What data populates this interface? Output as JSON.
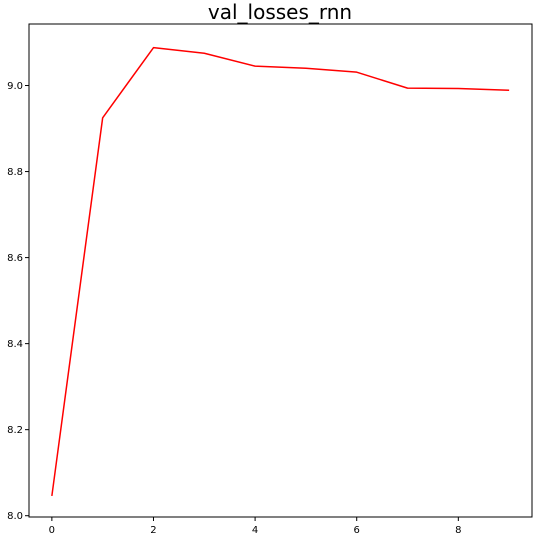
{
  "chart_data": {
    "type": "line",
    "title": "val_losses_rnn",
    "xlabel": "",
    "ylabel": "",
    "x": [
      0,
      1,
      2,
      3,
      4,
      5,
      6,
      7,
      8,
      9
    ],
    "series": [
      {
        "values": [
          8.046,
          8.925,
          9.088,
          9.075,
          9.045,
          9.04,
          9.031,
          8.994,
          8.993,
          8.989
        ],
        "color": "#ff0000"
      }
    ],
    "xlim": [
      -0.45,
      9.45
    ],
    "ylim": [
      7.997,
      9.143
    ],
    "xticks": [
      0,
      2,
      4,
      6,
      8
    ],
    "yticks": [
      8.0,
      8.2,
      8.4,
      8.6,
      8.8,
      9.0
    ],
    "xtick_labels": [
      "0",
      "2",
      "4",
      "6",
      "8"
    ],
    "ytick_labels": [
      "8.0",
      "8.2",
      "8.4",
      "8.6",
      "8.8",
      "9.0"
    ],
    "grid": false,
    "legend": "none"
  }
}
